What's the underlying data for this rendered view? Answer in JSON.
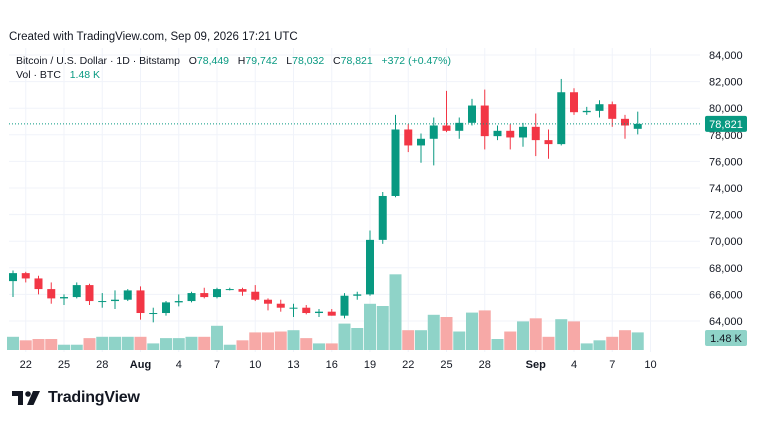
{
  "header": {
    "text": "Created with TradingView.com, Sep 09, 2026 17:21 UTC"
  },
  "legend": {
    "symbol": "Bitcoin / U.S. Dollar · 1D · Bitstamp",
    "o_label": "O",
    "o_value": "78,449",
    "h_label": "H",
    "h_value": "79,742",
    "l_label": "L",
    "l_value": "78,032",
    "c_label": "C",
    "c_value": "78,821",
    "change": "+372 (+0.47%)",
    "vol_label": "Vol · BTC",
    "vol_value": "1.48 K"
  },
  "price_axis": {
    "ticks": [
      "84,000",
      "82,000",
      "80,000",
      "78,000",
      "76,000",
      "74,000",
      "72,000",
      "70,000",
      "68,000",
      "66,000",
      "64,000"
    ],
    "last_price": "78,821",
    "last_volume": "1.48 K"
  },
  "time_axis": {
    "ticks": [
      {
        "label": "22",
        "index": 1,
        "bold": false
      },
      {
        "label": "25",
        "index": 4,
        "bold": false
      },
      {
        "label": "28",
        "index": 7,
        "bold": false
      },
      {
        "label": "Aug",
        "index": 10,
        "bold": true
      },
      {
        "label": "4",
        "index": 13,
        "bold": false
      },
      {
        "label": "7",
        "index": 16,
        "bold": false
      },
      {
        "label": "10",
        "index": 19,
        "bold": false
      },
      {
        "label": "13",
        "index": 22,
        "bold": false
      },
      {
        "label": "16",
        "index": 25,
        "bold": false
      },
      {
        "label": "19",
        "index": 28,
        "bold": false
      },
      {
        "label": "22",
        "index": 31,
        "bold": false
      },
      {
        "label": "25",
        "index": 34,
        "bold": false
      },
      {
        "label": "28",
        "index": 37,
        "bold": false
      },
      {
        "label": "Sep",
        "index": 41,
        "bold": true
      },
      {
        "label": "4",
        "index": 44,
        "bold": false
      },
      {
        "label": "7",
        "index": 47,
        "bold": false
      },
      {
        "label": "10",
        "index": 50,
        "bold": false
      }
    ]
  },
  "colors": {
    "up": "#089981",
    "down": "#f23645",
    "up_volume": "#8fd3c8",
    "down_volume": "#f7a9a7",
    "grid": "#f0f3fa",
    "text": "#131722"
  },
  "logo": {
    "text": "TradingView",
    "icon": "tradingview-logo-icon"
  },
  "chart_data": {
    "type": "candlestick",
    "x_start": "2026-07-21",
    "y_axis_range": [
      63000,
      84500
    ],
    "candles": [
      {
        "o": 67000,
        "h": 67800,
        "l": 65800,
        "c": 67600
      },
      {
        "o": 67600,
        "h": 67700,
        "l": 66900,
        "c": 67200
      },
      {
        "o": 67200,
        "h": 67400,
        "l": 66000,
        "c": 66400
      },
      {
        "o": 66400,
        "h": 66900,
        "l": 65300,
        "c": 65700
      },
      {
        "o": 65700,
        "h": 66000,
        "l": 65200,
        "c": 65800
      },
      {
        "o": 65800,
        "h": 66900,
        "l": 65700,
        "c": 66700
      },
      {
        "o": 66700,
        "h": 66800,
        "l": 65200,
        "c": 65500
      },
      {
        "o": 65500,
        "h": 66100,
        "l": 65000,
        "c": 65500
      },
      {
        "o": 65500,
        "h": 66300,
        "l": 64900,
        "c": 65600
      },
      {
        "o": 65600,
        "h": 66400,
        "l": 65500,
        "c": 66300
      },
      {
        "o": 66300,
        "h": 66600,
        "l": 64100,
        "c": 64600
      },
      {
        "o": 64600,
        "h": 65000,
        "l": 63900,
        "c": 64600
      },
      {
        "o": 64600,
        "h": 65500,
        "l": 64400,
        "c": 65400
      },
      {
        "o": 65400,
        "h": 66000,
        "l": 65100,
        "c": 65500
      },
      {
        "o": 65500,
        "h": 66200,
        "l": 65400,
        "c": 66100
      },
      {
        "o": 66100,
        "h": 66500,
        "l": 65700,
        "c": 65800
      },
      {
        "o": 65800,
        "h": 66500,
        "l": 65700,
        "c": 66400
      },
      {
        "o": 66400,
        "h": 66500,
        "l": 66300,
        "c": 66400
      },
      {
        "o": 66400,
        "h": 66500,
        "l": 65900,
        "c": 66200
      },
      {
        "o": 66200,
        "h": 66700,
        "l": 65500,
        "c": 65600
      },
      {
        "o": 65600,
        "h": 65700,
        "l": 64800,
        "c": 65300
      },
      {
        "o": 65300,
        "h": 65600,
        "l": 64700,
        "c": 65000
      },
      {
        "o": 65000,
        "h": 65300,
        "l": 64300,
        "c": 65000
      },
      {
        "o": 65000,
        "h": 65200,
        "l": 64500,
        "c": 64600
      },
      {
        "o": 64600,
        "h": 64900,
        "l": 64300,
        "c": 64700
      },
      {
        "o": 64700,
        "h": 64900,
        "l": 64400,
        "c": 64400
      },
      {
        "o": 64400,
        "h": 66100,
        "l": 64200,
        "c": 65900
      },
      {
        "o": 65900,
        "h": 66200,
        "l": 65600,
        "c": 66000
      },
      {
        "o": 66000,
        "h": 70800,
        "l": 65900,
        "c": 70100
      },
      {
        "o": 70100,
        "h": 73700,
        "l": 69800,
        "c": 73400
      },
      {
        "o": 73400,
        "h": 79500,
        "l": 73300,
        "c": 78400
      },
      {
        "o": 78400,
        "h": 78800,
        "l": 76700,
        "c": 77200
      },
      {
        "o": 77200,
        "h": 78100,
        "l": 75900,
        "c": 77700
      },
      {
        "o": 77700,
        "h": 79300,
        "l": 75700,
        "c": 78700
      },
      {
        "o": 78700,
        "h": 81300,
        "l": 78200,
        "c": 78300
      },
      {
        "o": 78300,
        "h": 79300,
        "l": 77700,
        "c": 78900
      },
      {
        "o": 78900,
        "h": 80700,
        "l": 78700,
        "c": 80200
      },
      {
        "o": 80200,
        "h": 81400,
        "l": 76900,
        "c": 77900
      },
      {
        "o": 77900,
        "h": 78700,
        "l": 77600,
        "c": 78300
      },
      {
        "o": 78300,
        "h": 78800,
        "l": 76900,
        "c": 77800
      },
      {
        "o": 77800,
        "h": 78900,
        "l": 77100,
        "c": 78600
      },
      {
        "o": 78600,
        "h": 79600,
        "l": 76400,
        "c": 77600
      },
      {
        "o": 77600,
        "h": 78400,
        "l": 76200,
        "c": 77300
      },
      {
        "o": 77300,
        "h": 82200,
        "l": 77200,
        "c": 81200
      },
      {
        "o": 81200,
        "h": 81500,
        "l": 79500,
        "c": 79700
      },
      {
        "o": 79700,
        "h": 80100,
        "l": 79500,
        "c": 79800
      },
      {
        "o": 79800,
        "h": 80600,
        "l": 79300,
        "c": 80300
      },
      {
        "o": 80300,
        "h": 80500,
        "l": 78600,
        "c": 79200
      },
      {
        "o": 79200,
        "h": 79500,
        "l": 77700,
        "c": 78700
      },
      {
        "o": 78449,
        "h": 79742,
        "l": 78032,
        "c": 78821
      }
    ],
    "volume_relative": [
      0.3,
      0.22,
      0.25,
      0.25,
      0.12,
      0.12,
      0.27,
      0.3,
      0.3,
      0.3,
      0.3,
      0.15,
      0.27,
      0.27,
      0.3,
      0.3,
      0.55,
      0.12,
      0.22,
      0.4,
      0.4,
      0.42,
      0.45,
      0.27,
      0.15,
      0.15,
      0.6,
      0.5,
      1.05,
      1.0,
      1.72,
      0.45,
      0.45,
      0.8,
      0.75,
      0.42,
      0.85,
      0.9,
      0.25,
      0.42,
      0.65,
      0.72,
      0.3,
      0.7,
      0.65,
      0.15,
      0.22,
      0.3,
      0.45,
      0.4
    ],
    "last_price": 78821
  }
}
